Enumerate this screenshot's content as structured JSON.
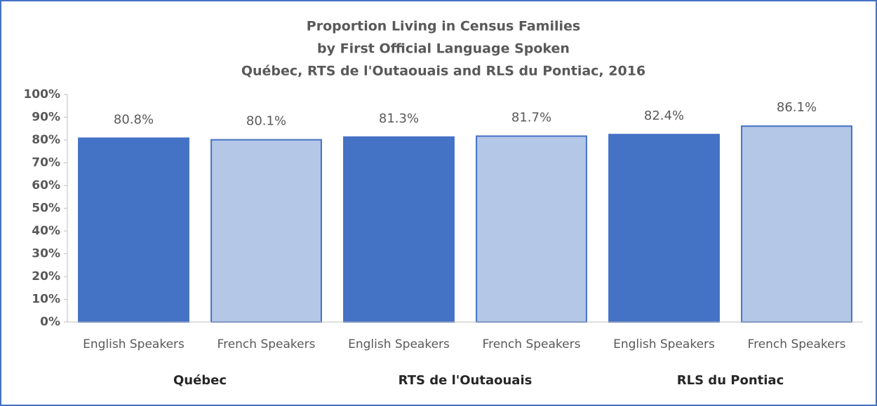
{
  "chart_data": {
    "type": "bar",
    "title": [
      "Proportion  Living in Census Families",
      "by First Official Language Spoken",
      "Québec, RTS de l'Outaouais  and RLS du Pontiac, 2016"
    ],
    "categories": [
      "English Speakers",
      "French Speakers",
      "English Speakers",
      "French Speakers",
      "English Speakers",
      "French Speakers"
    ],
    "groups": [
      "Québec",
      "RTS de l'Outaouais",
      "RLS du Pontiac"
    ],
    "values": [
      80.8,
      80.1,
      81.3,
      81.7,
      82.4,
      86.1
    ],
    "value_labels": [
      "80.8%",
      "80.1%",
      "81.3%",
      "81.7%",
      "82.4%",
      "86.1%"
    ],
    "colors": [
      "#4472c4",
      "#b4c7e7",
      "#4472c4",
      "#b4c7e7",
      "#4472c4",
      "#b4c7e7"
    ],
    "ylim": [
      0,
      100
    ],
    "yticks": [
      {
        "value": 0,
        "label": "0%"
      },
      {
        "value": 10,
        "label": "10%"
      },
      {
        "value": 20,
        "label": "20%"
      },
      {
        "value": 30,
        "label": "30%"
      },
      {
        "value": 40,
        "label": "40%"
      },
      {
        "value": 50,
        "label": "50%"
      },
      {
        "value": 60,
        "label": "60%"
      },
      {
        "value": 70,
        "label": "70%"
      },
      {
        "value": 80,
        "label": "80%"
      },
      {
        "value": 90,
        "label": "90%"
      },
      {
        "value": 100,
        "label": "100%"
      }
    ],
    "grid": false
  }
}
